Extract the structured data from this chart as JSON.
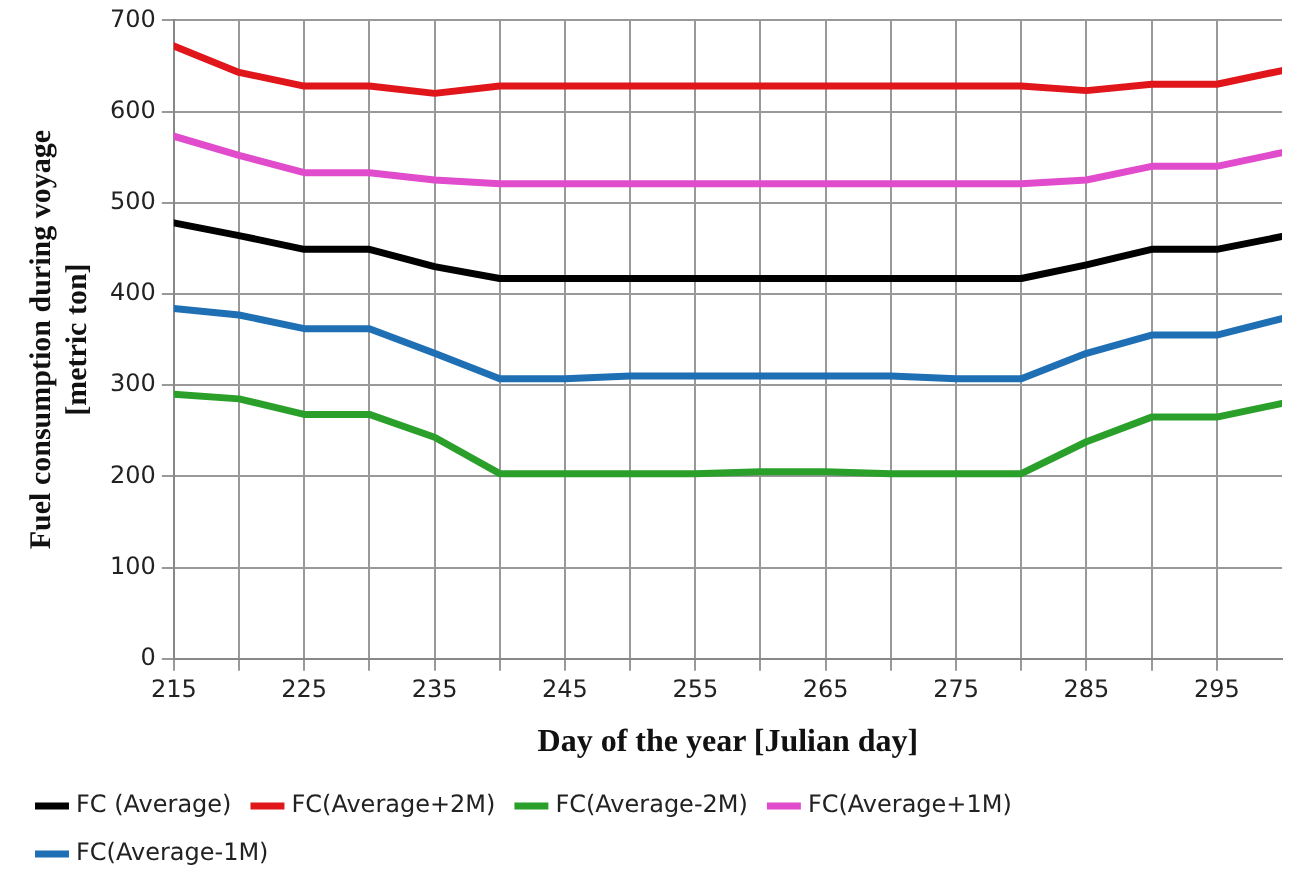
{
  "chart_data": {
    "type": "line",
    "xlabel": "Day of the year [Julian day]",
    "ylabel": "Fuel consumption during voyage [metric ton]",
    "x": [
      215,
      220,
      225,
      230,
      235,
      240,
      245,
      250,
      255,
      260,
      265,
      270,
      275,
      280,
      285,
      290,
      295,
      300
    ],
    "xlim": [
      215,
      300
    ],
    "xticks": [
      215,
      {
        "value": 220,
        "label": null
      },
      225,
      {
        "value": 230,
        "label": null
      },
      235,
      {
        "value": 240,
        "label": null
      },
      245,
      {
        "value": 250,
        "label": null
      },
      255,
      {
        "value": 260,
        "label": null
      },
      265,
      {
        "value": 270,
        "label": null
      },
      275,
      {
        "value": 280,
        "label": null
      },
      285,
      {
        "value": 290,
        "label": null
      },
      295
    ],
    "ylim": [
      0,
      700
    ],
    "yticks": [
      0,
      100,
      200,
      300,
      400,
      500,
      600,
      700
    ],
    "grid": true,
    "legend": "bottom",
    "marker": "none",
    "line_style": "solid",
    "series": [
      {
        "name": "FC (Average)",
        "color": "#000000",
        "values": [
          478,
          464,
          449,
          449,
          430,
          417,
          417,
          417,
          417,
          417,
          417,
          417,
          417,
          417,
          432,
          449,
          449,
          463
        ]
      },
      {
        "name": "FC(Average+2M)",
        "color": "#e0161b",
        "values": [
          672,
          643,
          628,
          628,
          620,
          628,
          628,
          628,
          628,
          628,
          628,
          628,
          628,
          628,
          623,
          630,
          630,
          645
        ]
      },
      {
        "name": "FC(Average-2M)",
        "color": "#2aa02a",
        "values": [
          290,
          285,
          268,
          268,
          243,
          203,
          203,
          203,
          203,
          205,
          205,
          203,
          203,
          203,
          238,
          265,
          265,
          280
        ]
      },
      {
        "name": "FC(Average+1M)",
        "color": "#e04ccc",
        "values": [
          573,
          552,
          533,
          533,
          525,
          521,
          521,
          521,
          521,
          521,
          521,
          521,
          521,
          521,
          525,
          540,
          540,
          555
        ]
      },
      {
        "name": "FC(Average-1M)",
        "color": "#1f6fb4",
        "values": [
          384,
          377,
          362,
          362,
          335,
          307,
          307,
          310,
          310,
          310,
          310,
          310,
          307,
          307,
          335,
          355,
          355,
          373
        ]
      }
    ]
  }
}
